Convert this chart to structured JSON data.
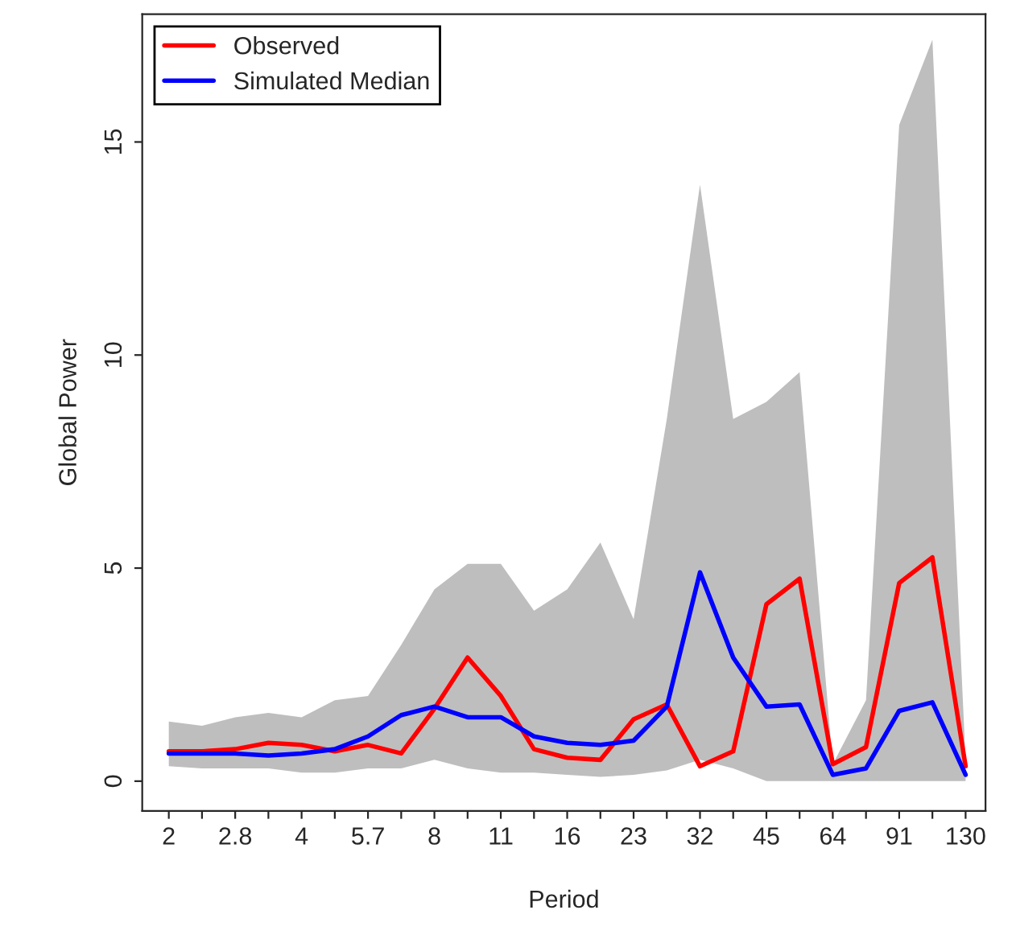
{
  "chart_data": {
    "type": "line",
    "xlabel": "Period",
    "ylabel": "Global Power",
    "categories": [
      "2",
      null,
      "2.8",
      null,
      "4",
      null,
      "5.7",
      null,
      "8",
      null,
      "11",
      null,
      "16",
      null,
      "23",
      null,
      "32",
      null,
      "45",
      null,
      "64",
      null,
      "91",
      null,
      "130"
    ],
    "series": [
      {
        "name": "Observed",
        "color": "#ff0000",
        "values": [
          0.7,
          0.7,
          0.75,
          0.9,
          0.85,
          0.7,
          0.85,
          0.65,
          1.7,
          2.9,
          2.0,
          0.75,
          0.55,
          0.5,
          1.45,
          1.8,
          0.35,
          0.7,
          4.15,
          4.75,
          0.4,
          0.8,
          4.65,
          5.25,
          0.35
        ]
      },
      {
        "name": "Simulated Median",
        "color": "#0000ff",
        "values": [
          0.65,
          0.65,
          0.65,
          0.6,
          0.65,
          0.75,
          1.05,
          1.55,
          1.75,
          1.5,
          1.5,
          1.05,
          0.9,
          0.85,
          0.95,
          1.75,
          4.9,
          2.9,
          1.75,
          1.8,
          0.15,
          0.3,
          1.65,
          1.85,
          0.15
        ],
        "lower": [
          0.35,
          0.3,
          0.3,
          0.3,
          0.2,
          0.2,
          0.3,
          0.3,
          0.5,
          0.3,
          0.2,
          0.2,
          0.15,
          0.1,
          0.15,
          0.25,
          0.5,
          0.3,
          0.0,
          0.0,
          0.0,
          0.0,
          0.0,
          0.0,
          0.0
        ],
        "upper": [
          1.4,
          1.3,
          1.5,
          1.6,
          1.5,
          1.9,
          2.0,
          3.2,
          4.5,
          5.1,
          5.1,
          4.0,
          4.5,
          5.6,
          3.8,
          8.5,
          14.0,
          8.5,
          8.9,
          9.6,
          0.4,
          1.9,
          15.4,
          17.4,
          0.5
        ]
      }
    ],
    "ylim": [
      -0.7,
      18.0
    ],
    "yticks": [
      0,
      5,
      10,
      15
    ],
    "grid": false,
    "legend": "top left",
    "line_style": "solid",
    "marker": "none"
  }
}
